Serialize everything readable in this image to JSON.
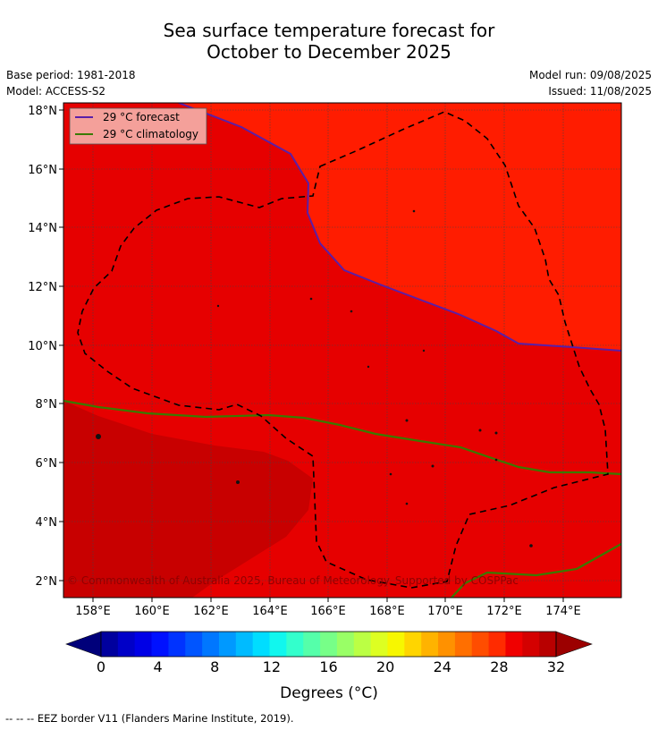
{
  "title_line1": "Sea surface temperature forecast for",
  "title_line2": "October to December 2025",
  "base_period": "Base period: 1981-2018",
  "model": "Model: ACCESS-S2",
  "model_run": "Model run: 09/08/2025",
  "issued": "Issued: 11/08/2025",
  "legend": {
    "forecast": "29 °C  forecast",
    "climatology": "29 °C  climatology"
  },
  "copyright": "© Commonwealth of Australia 2025, Bureau of Meteorology. Supported by COSPPac",
  "lat_labels": [
    "2°N",
    "4°N",
    "6°N",
    "8°N",
    "10°N",
    "12°N",
    "14°N",
    "16°N",
    "18°N"
  ],
  "lon_labels": [
    "158°E",
    "160°E",
    "162°E",
    "164°E",
    "166°E",
    "168°E",
    "170°E",
    "172°E",
    "174°E"
  ],
  "colorbar": {
    "tick_labels": [
      "0",
      "4",
      "8",
      "12",
      "16",
      "20",
      "24",
      "28",
      "32"
    ],
    "label": "Degrees ($^\\circ$C)",
    "label_display": "Degrees (°C)",
    "colors": [
      "#00009e",
      "#0000c8",
      "#0000e6",
      "#0011ff",
      "#0033ff",
      "#0055ff",
      "#0077ff",
      "#0099ff",
      "#00bbff",
      "#00ddff",
      "#11f7ee",
      "#33ffcc",
      "#55ffaa",
      "#77ff88",
      "#99ff66",
      "#bbff44",
      "#ddff22",
      "#f7f700",
      "#ffd500",
      "#ffb300",
      "#ff9100",
      "#ff6f00",
      "#ff4d00",
      "#ff2b00",
      "#f00000",
      "#d40000",
      "#b80000"
    ],
    "under_color": "#00007a",
    "over_color": "#9c0000"
  },
  "map_colors": {
    "warm_fill": "#ff1c00",
    "mid_fill": "#e60000",
    "cool_fill": "#c80000",
    "forecast_line": "#5a1fa8",
    "climatology_line": "#3a7a00",
    "legend_bg": "#f4a09a"
  },
  "footer": "--  --  -- EEZ border V11 (Flanders Marine Institute, 2019)."
}
